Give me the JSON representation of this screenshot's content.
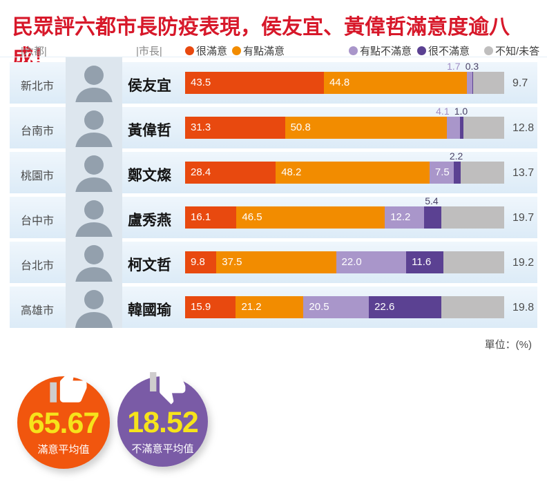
{
  "title": "民眾評六都市長防疫表現，侯友宜、黃偉哲滿意度逾八成！",
  "header": {
    "city_col": "|六都|",
    "mayor_col": "|市長|"
  },
  "legend": {
    "items": [
      {
        "label": "很滿意",
        "color": "#e8490f"
      },
      {
        "label": "有點滿意",
        "color": "#f28c00"
      },
      {
        "label": "有點不滿意",
        "color": "#a996ca"
      },
      {
        "label": "很不滿意",
        "color": "#5b4192"
      },
      {
        "label": "不知/未答",
        "color": "#bfbebe"
      }
    ]
  },
  "unit_label": "單位：(%)",
  "chart_data": {
    "type": "bar",
    "stacked": true,
    "orientation": "horizontal",
    "xlim": [
      0,
      100
    ],
    "unit": "%",
    "categories": [
      "新北市",
      "台南市",
      "桃園市",
      "台中市",
      "台北市",
      "高雄市"
    ],
    "mayors": [
      "侯友宜",
      "黃偉哲",
      "鄭文燦",
      "盧秀燕",
      "柯文哲",
      "韓國瑜"
    ],
    "series": [
      {
        "name": "很滿意",
        "color": "#e8490f",
        "values": [
          43.5,
          31.3,
          28.4,
          16.1,
          9.8,
          15.9
        ]
      },
      {
        "name": "有點滿意",
        "color": "#f28c00",
        "values": [
          44.8,
          50.8,
          48.2,
          46.5,
          37.5,
          21.2
        ]
      },
      {
        "name": "有點不滿意",
        "color": "#a996ca",
        "values": [
          1.7,
          4.1,
          7.5,
          12.2,
          22.0,
          20.5
        ]
      },
      {
        "name": "很不滿意",
        "color": "#5b4192",
        "values": [
          0.3,
          1.0,
          2.2,
          5.4,
          11.6,
          22.6
        ]
      },
      {
        "name": "不知/未答",
        "color": "#bfbebe",
        "values": [
          9.7,
          12.8,
          13.7,
          19.7,
          19.2,
          19.8
        ]
      }
    ]
  },
  "summary": {
    "satisfied": {
      "value": "65.67",
      "label": "滿意平均值",
      "color": "#f1560e",
      "icon": "thumb-up-icon"
    },
    "unsatisfied": {
      "value": "18.52",
      "label": "不滿意平均值",
      "color": "#7a5ba6",
      "icon": "thumb-down-icon"
    }
  }
}
